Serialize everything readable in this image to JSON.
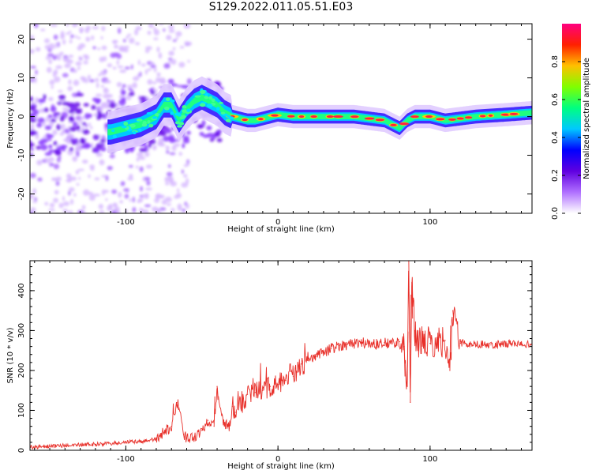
{
  "page": {
    "title": "S129.2022.011.05.51.E03"
  },
  "chart_data": [
    {
      "type": "heatmap",
      "xlabel": "Height of straight line (km)",
      "ylabel": "Frequency (Hz)",
      "xlim": [
        -163,
        167
      ],
      "ylim": [
        -25,
        24
      ],
      "xticks": [
        -100,
        0,
        100
      ],
      "yticks": [
        -20,
        -10,
        0,
        10,
        20
      ],
      "colorbar": {
        "label": "Normalized spectral amplitude",
        "range": [
          0.0,
          1.0
        ],
        "ticks": [
          0.0,
          0.2,
          0.4,
          0.6,
          0.8
        ],
        "tick_labels": [
          "0.0",
          "0.2",
          "0.4",
          "0.6",
          "0.8"
        ],
        "colormap": [
          "#ffffff",
          "#b070ff",
          "#6000e0",
          "#0000ff",
          "#00c8ff",
          "#00ff80",
          "#80ff00",
          "#ffc000",
          "#ff2000",
          "#ff0080"
        ]
      },
      "ridge": {
        "description_points_x": [
          -110,
          -100,
          -90,
          -80,
          -75,
          -70,
          -65,
          -60,
          -55,
          -50,
          -45,
          -40,
          -35,
          -30,
          -20,
          -15,
          -10,
          -5,
          0,
          10,
          30,
          50,
          70,
          75,
          80,
          85,
          90,
          100,
          110,
          130,
          150,
          167
        ],
        "frequency_hz": [
          -4,
          -3,
          -2,
          0,
          3,
          3,
          -1,
          2,
          4,
          5,
          4,
          3,
          1,
          0,
          -1,
          -1,
          -0.5,
          0,
          0.5,
          0,
          0,
          0,
          -1,
          -2,
          -3,
          -1,
          0,
          0,
          -1,
          0,
          0.5,
          1
        ]
      }
    },
    {
      "type": "line",
      "xlabel": "Height of straight line (km)",
      "ylabel": "SNR (10 * v/v)",
      "xlim": [
        -163,
        167
      ],
      "ylim": [
        0,
        475
      ],
      "xticks": [
        -100,
        0,
        100
      ],
      "yticks": [
        0,
        100,
        200,
        300,
        400
      ],
      "line_color": "#e8302a",
      "series": [
        {
          "x": [
            -163,
            -150,
            -140,
            -130,
            -120,
            -110,
            -100,
            -90,
            -80,
            -75,
            -70,
            -66,
            -62,
            -60,
            -55,
            -50,
            -46,
            -42,
            -40,
            -36,
            -32,
            -30,
            -28,
            -25,
            -22,
            -20,
            -15,
            -10,
            -5,
            0,
            5,
            10,
            15,
            20,
            25,
            30,
            35,
            40,
            45,
            50,
            55,
            60,
            65,
            70,
            75,
            80,
            83,
            85,
            86,
            87,
            88,
            90,
            92,
            95,
            100,
            105,
            110,
            113,
            115,
            120,
            130,
            140,
            150,
            160,
            167
          ],
          "y": [
            8,
            10,
            12,
            14,
            15,
            17,
            20,
            22,
            28,
            45,
            60,
            120,
            40,
            30,
            35,
            50,
            75,
            60,
            160,
            70,
            55,
            110,
            95,
            130,
            110,
            140,
            145,
            150,
            160,
            165,
            175,
            185,
            210,
            225,
            235,
            245,
            255,
            262,
            265,
            268,
            270,
            268,
            266,
            270,
            268,
            272,
            260,
            160,
            475,
            120,
            420,
            300,
            260,
            280,
            268,
            270,
            275,
            200,
            350,
            268,
            266,
            264,
            268,
            265,
            266
          ]
        }
      ]
    }
  ]
}
